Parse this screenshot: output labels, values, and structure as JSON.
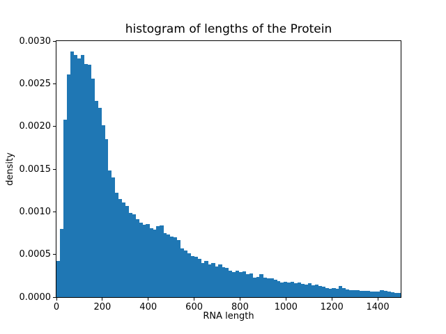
{
  "figure": {
    "background": "#ffffff",
    "text_color": "#000000"
  },
  "chart_data": {
    "type": "bar",
    "subtype": "histogram",
    "title": "histogram of lengths of the Protein",
    "xlabel": "RNA length",
    "ylabel": "density",
    "bar_color": "#1f77b4",
    "grid": false,
    "legend": "none",
    "xlim": [
      0,
      1500
    ],
    "ylim": [
      0,
      0.003
    ],
    "bin_start": 0,
    "bin_width": 15,
    "x_tick_values": [
      0,
      200,
      400,
      600,
      800,
      1000,
      1200,
      1400
    ],
    "x_tick_labels": [
      "0",
      "200",
      "400",
      "600",
      "800",
      "1000",
      "1200",
      "1400"
    ],
    "y_tick_values": [
      0,
      0.0005,
      0.001,
      0.0015,
      0.002,
      0.0025,
      0.003
    ],
    "y_tick_labels": [
      "0.0000",
      "0.0005",
      "0.0010",
      "0.0015",
      "0.0020",
      "0.0025",
      "0.0030"
    ],
    "values": [
      0.00042,
      0.0008,
      0.00208,
      0.00261,
      0.00288,
      0.00284,
      0.0028,
      0.00284,
      0.00273,
      0.00272,
      0.00256,
      0.0023,
      0.00222,
      0.00201,
      0.00185,
      0.00148,
      0.0014,
      0.00122,
      0.00115,
      0.00111,
      0.00107,
      0.00099,
      0.00097,
      0.00091,
      0.00087,
      0.00085,
      0.00086,
      0.00081,
      0.00079,
      0.00083,
      0.00084,
      0.00075,
      0.00073,
      0.00071,
      0.0007,
      0.00067,
      0.00057,
      0.00055,
      0.00051,
      0.00048,
      0.00047,
      0.00045,
      0.0004,
      0.00042,
      0.00038,
      0.0004,
      0.00036,
      0.00038,
      0.00035,
      0.00034,
      0.00031,
      0.00029,
      0.00031,
      0.00029,
      0.0003,
      0.00027,
      0.00028,
      0.00023,
      0.00024,
      0.00027,
      0.00023,
      0.00022,
      0.00022,
      0.0002,
      0.00019,
      0.00017,
      0.00018,
      0.00017,
      0.00018,
      0.000165,
      0.00017,
      0.000155,
      0.000145,
      0.00016,
      0.00014,
      0.000145,
      0.00013,
      0.000125,
      0.00011,
      0.0001,
      0.00011,
      0.0001,
      0.00013,
      0.000105,
      9.2e-05,
      8.4e-05,
      7.8e-05,
      7.8e-05,
      7.3e-05,
      7.3e-05,
      7e-05,
      6.8e-05,
      6.8e-05,
      6.2e-05,
      7.8e-05,
      7.3e-05,
      6.8e-05,
      5.7e-05,
      5.1e-05,
      4.6e-05
    ]
  }
}
